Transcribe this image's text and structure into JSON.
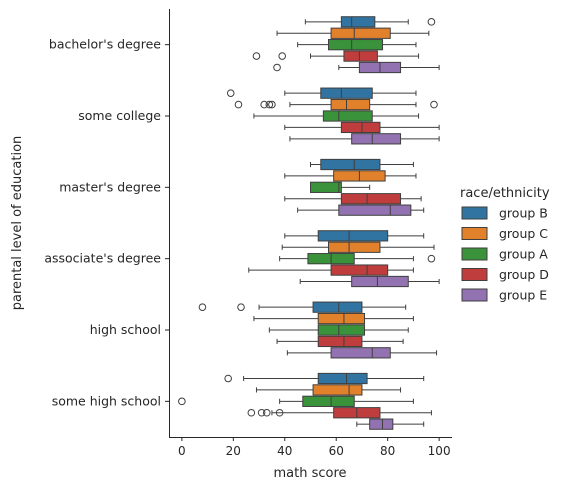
{
  "chart_data": {
    "type": "boxplot",
    "orientation": "horizontal",
    "xlabel": "math score",
    "ylabel": "parental level of education",
    "xlim": [
      -5,
      105
    ],
    "xticks": [
      0,
      20,
      40,
      60,
      80,
      100
    ],
    "grid": false,
    "legend": {
      "title": "race/ethnicity",
      "placement": "right"
    },
    "categories": [
      "bachelor's degree",
      "some college",
      "master's degree",
      "associate's degree",
      "high school",
      "some high school"
    ],
    "series": [
      {
        "name": "group B",
        "color": "#3274a1",
        "boxes": [
          {
            "whislo": 48,
            "q1": 62,
            "med": 66,
            "q3": 75,
            "whishi": 88,
            "fliers": [
              97
            ]
          },
          {
            "whislo": 40,
            "q1": 54,
            "med": 62,
            "q3": 74,
            "whishi": 91,
            "fliers": [
              19
            ]
          },
          {
            "whislo": 50,
            "q1": 54,
            "med": 67,
            "q3": 77,
            "whishi": 90,
            "fliers": []
          },
          {
            "whislo": 40,
            "q1": 53,
            "med": 65,
            "q3": 80,
            "whishi": 94,
            "fliers": []
          },
          {
            "whislo": 30,
            "q1": 51,
            "med": 61,
            "q3": 70,
            "whishi": 87,
            "fliers": [
              8,
              23
            ]
          },
          {
            "whislo": 24,
            "q1": 53,
            "med": 64,
            "q3": 72,
            "whishi": 94,
            "fliers": [
              18
            ]
          }
        ]
      },
      {
        "name": "group C",
        "color": "#e1812c",
        "boxes": [
          {
            "whislo": 37,
            "q1": 58,
            "med": 67,
            "q3": 81,
            "whishi": 96,
            "fliers": []
          },
          {
            "whislo": 42,
            "q1": 58,
            "med": 64,
            "q3": 73,
            "whishi": 91,
            "fliers": [
              22,
              32,
              34,
              35,
              98
            ]
          },
          {
            "whislo": 40,
            "q1": 59,
            "med": 69,
            "q3": 79,
            "whishi": 91,
            "fliers": []
          },
          {
            "whislo": 39,
            "q1": 57,
            "med": 65,
            "q3": 77,
            "whishi": 98,
            "fliers": []
          },
          {
            "whislo": 28,
            "q1": 53,
            "med": 63,
            "q3": 71,
            "whishi": 90,
            "fliers": []
          },
          {
            "whislo": 29,
            "q1": 51,
            "med": 65,
            "q3": 70,
            "whishi": 85,
            "fliers": []
          }
        ]
      },
      {
        "name": "group A",
        "color": "#3a923a",
        "boxes": [
          {
            "whislo": 45,
            "q1": 57,
            "med": 66,
            "q3": 78,
            "whishi": 91,
            "fliers": []
          },
          {
            "whislo": 28,
            "q1": 55,
            "med": 61,
            "q3": 74,
            "whishi": 92,
            "fliers": []
          },
          {
            "whislo": 50,
            "q1": 50,
            "med": 61,
            "q3": 62,
            "whishi": 73,
            "fliers": []
          },
          {
            "whislo": 38,
            "q1": 49,
            "med": 58,
            "q3": 67,
            "whishi": 90,
            "fliers": [
              97
            ]
          },
          {
            "whislo": 34,
            "q1": 53,
            "med": 61,
            "q3": 71,
            "whishi": 88,
            "fliers": []
          },
          {
            "whislo": 38,
            "q1": 47,
            "med": 58,
            "q3": 67,
            "whishi": 90,
            "fliers": [
              0
            ]
          }
        ]
      },
      {
        "name": "group D",
        "color": "#c03d3e",
        "boxes": [
          {
            "whislo": 50,
            "q1": 63,
            "med": 69,
            "q3": 76,
            "whishi": 92,
            "fliers": [
              29,
              39
            ]
          },
          {
            "whislo": 40,
            "q1": 62,
            "med": 70,
            "q3": 77,
            "whishi": 100,
            "fliers": []
          },
          {
            "whislo": 40,
            "q1": 62,
            "med": 72,
            "q3": 85,
            "whishi": 93,
            "fliers": []
          },
          {
            "whislo": 26,
            "q1": 58,
            "med": 72,
            "q3": 80,
            "whishi": 90,
            "fliers": []
          },
          {
            "whislo": 37,
            "q1": 53,
            "med": 63,
            "q3": 70,
            "whishi": 86,
            "fliers": []
          },
          {
            "whislo": 35,
            "q1": 59,
            "med": 68,
            "q3": 77,
            "whishi": 97,
            "fliers": [
              27,
              31,
              33,
              38
            ]
          }
        ]
      },
      {
        "name": "group E",
        "color": "#9372b2",
        "boxes": [
          {
            "whislo": 61,
            "q1": 69,
            "med": 77,
            "q3": 85,
            "whishi": 100,
            "fliers": [
              37
            ]
          },
          {
            "whislo": 42,
            "q1": 66,
            "med": 74,
            "q3": 85,
            "whishi": 100,
            "fliers": []
          },
          {
            "whislo": 45,
            "q1": 61,
            "med": 81,
            "q3": 89,
            "whishi": 94,
            "fliers": []
          },
          {
            "whislo": 46,
            "q1": 66,
            "med": 76,
            "q3": 88,
            "whishi": 100,
            "fliers": []
          },
          {
            "whislo": 41,
            "q1": 58,
            "med": 74,
            "q3": 81,
            "whishi": 99,
            "fliers": []
          },
          {
            "whislo": 68,
            "q1": 73,
            "med": 78,
            "q3": 82,
            "whishi": 94,
            "fliers": []
          }
        ]
      }
    ]
  }
}
